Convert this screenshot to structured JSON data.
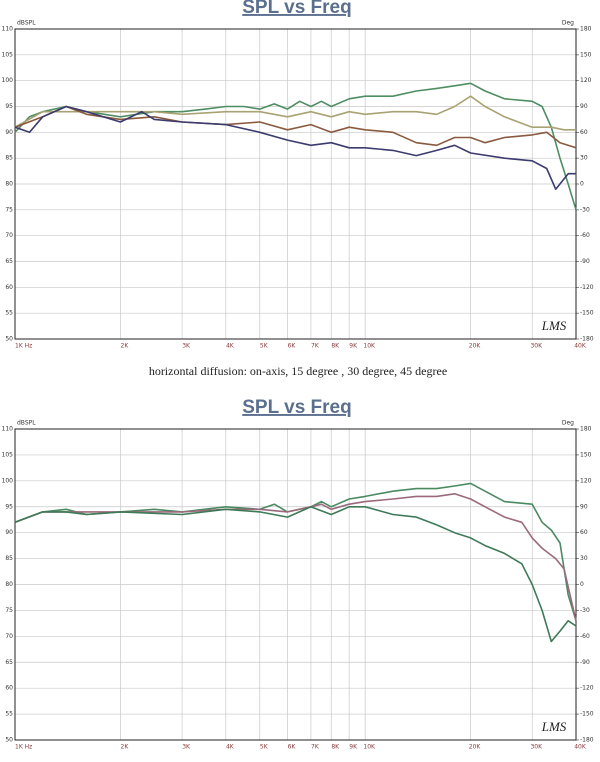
{
  "caption": "horizontal diffusion: on-axis, 15 degree , 30 degree, 45 degree",
  "chart_data": [
    {
      "type": "line",
      "title": "SPL vs Freq",
      "y_label": "dBSPL",
      "y2_label": "Deg",
      "annotation": "LMS",
      "log_x": true,
      "grid": true,
      "xlim": [
        1000,
        40000
      ],
      "xticks": [
        {
          "value": 1000,
          "label": "1K Hz"
        },
        {
          "value": 2000,
          "label": "2K"
        },
        {
          "value": 3000,
          "label": "3K"
        },
        {
          "value": 4000,
          "label": "4K"
        },
        {
          "value": 5000,
          "label": "5K"
        },
        {
          "value": 6000,
          "label": "6K"
        },
        {
          "value": 7000,
          "label": "7K"
        },
        {
          "value": 8000,
          "label": "8K"
        },
        {
          "value": 9000,
          "label": "9K"
        },
        {
          "value": 10000,
          "label": "10K"
        },
        {
          "value": 20000,
          "label": "20K"
        },
        {
          "value": 30000,
          "label": "30K"
        },
        {
          "value": 40000,
          "label": "40K"
        }
      ],
      "ylim": [
        50,
        110
      ],
      "yticks": [
        50,
        55,
        60,
        65,
        70,
        75,
        80,
        85,
        90,
        95,
        100,
        105,
        110
      ],
      "y2lim": [
        -180,
        180
      ],
      "y2ticks": [
        -180,
        -150,
        -120,
        -90,
        -60,
        -30,
        0,
        30,
        60,
        90,
        120,
        150,
        180
      ],
      "series": [
        {
          "color": "#4f8e62",
          "x": [
            1000,
            1100,
            1200,
            1400,
            1600,
            1800,
            2000,
            2500,
            3000,
            3500,
            4000,
            4500,
            5000,
            5500,
            6000,
            6500,
            7000,
            7500,
            8000,
            9000,
            10000,
            12000,
            14000,
            16000,
            18000,
            20000,
            22000,
            25000,
            30000,
            32000,
            34000,
            36000,
            38000,
            40000
          ],
          "values": [
            90,
            93,
            94,
            95,
            94,
            93.5,
            93,
            94,
            94,
            94.5,
            95,
            95,
            94.5,
            95.5,
            94.5,
            96,
            95,
            96,
            95,
            96.5,
            97,
            97,
            98,
            98.5,
            99,
            99.5,
            98,
            96.5,
            96,
            95,
            91,
            85,
            80,
            75
          ]
        },
        {
          "color": "#a9a272",
          "x": [
            1000,
            1200,
            1400,
            1600,
            2000,
            2500,
            3000,
            4000,
            5000,
            6000,
            7000,
            8000,
            9000,
            10000,
            12000,
            14000,
            16000,
            18000,
            20000,
            22000,
            25000,
            30000,
            34000,
            37000,
            40000
          ],
          "values": [
            91,
            94,
            94,
            94,
            94,
            94,
            93.5,
            94,
            94,
            93,
            94,
            93,
            94,
            93.5,
            94,
            94,
            93.5,
            95,
            97,
            95,
            93,
            91,
            91,
            90.5,
            90.5
          ]
        },
        {
          "color": "#8a5a3e",
          "x": [
            1000,
            1200,
            1400,
            1600,
            2000,
            2500,
            3000,
            4000,
            5000,
            6000,
            7000,
            8000,
            9000,
            10000,
            12000,
            14000,
            16000,
            18000,
            20000,
            22000,
            25000,
            30000,
            33000,
            36000,
            40000
          ],
          "values": [
            91,
            93,
            95,
            93.5,
            92.5,
            93,
            92,
            91.5,
            92,
            90.5,
            91.5,
            90,
            91,
            90.5,
            90,
            88,
            87.5,
            89,
            89,
            88,
            89,
            89.5,
            90,
            88,
            87
          ]
        },
        {
          "color": "#3b3b6e",
          "x": [
            1000,
            1100,
            1200,
            1400,
            1600,
            2000,
            2300,
            2500,
            3000,
            4000,
            5000,
            6000,
            7000,
            8000,
            9000,
            10000,
            12000,
            14000,
            16000,
            18000,
            20000,
            25000,
            30000,
            33000,
            35000,
            38000,
            40000
          ],
          "values": [
            91,
            90,
            93,
            95,
            94,
            92,
            94,
            92.5,
            92,
            91.5,
            90,
            88.5,
            87.5,
            88,
            87,
            87,
            86.5,
            85.5,
            86.5,
            87.5,
            86,
            85,
            84.5,
            83,
            79,
            82,
            82
          ]
        }
      ]
    },
    {
      "type": "line",
      "title": "SPL vs Freq",
      "y_label": "dBSPL",
      "y2_label": "Deg",
      "annotation": "LMS",
      "log_x": true,
      "grid": true,
      "xlim": [
        1000,
        40000
      ],
      "xticks": [
        {
          "value": 1000,
          "label": "1K Hz"
        },
        {
          "value": 2000,
          "label": "2K"
        },
        {
          "value": 3000,
          "label": "3K"
        },
        {
          "value": 4000,
          "label": "4K"
        },
        {
          "value": 5000,
          "label": "5K"
        },
        {
          "value": 6000,
          "label": "6K"
        },
        {
          "value": 7000,
          "label": "7K"
        },
        {
          "value": 8000,
          "label": "8K"
        },
        {
          "value": 9000,
          "label": "9K"
        },
        {
          "value": 10000,
          "label": "10K"
        },
        {
          "value": 20000,
          "label": "20K"
        },
        {
          "value": 30000,
          "label": "30K"
        },
        {
          "value": 40000,
          "label": "40K"
        }
      ],
      "ylim": [
        50,
        110
      ],
      "yticks": [
        50,
        55,
        60,
        65,
        70,
        75,
        80,
        85,
        90,
        95,
        100,
        105,
        110
      ],
      "y2lim": [
        -180,
        180
      ],
      "y2ticks": [
        -180,
        -150,
        -120,
        -90,
        -60,
        -30,
        0,
        30,
        60,
        90,
        120,
        150,
        180
      ],
      "series": [
        {
          "color": "#4a8a60",
          "x": [
            1000,
            1200,
            1400,
            1600,
            2000,
            2500,
            3000,
            4000,
            5000,
            5500,
            6000,
            7000,
            7500,
            8000,
            9000,
            10000,
            12000,
            14000,
            16000,
            18000,
            20000,
            22000,
            25000,
            30000,
            32000,
            34000,
            36000,
            38000,
            40000
          ],
          "values": [
            92,
            94,
            94.5,
            93.5,
            94,
            94.5,
            94,
            95,
            94.5,
            95.5,
            94,
            95,
            96,
            95,
            96.5,
            97,
            98,
            98.5,
            98.5,
            99,
            99.5,
            98,
            96,
            95.5,
            92,
            90.5,
            88,
            78,
            73
          ]
        },
        {
          "color": "#9a6a7c",
          "x": [
            1000,
            1200,
            1400,
            1600,
            2000,
            3000,
            4000,
            5000,
            6000,
            7000,
            7500,
            8000,
            9000,
            10000,
            12000,
            14000,
            16000,
            18000,
            20000,
            22000,
            25000,
            28000,
            30000,
            32000,
            35000,
            37000,
            40000
          ],
          "values": [
            92,
            94,
            94,
            94,
            94,
            94,
            94.5,
            94.5,
            94,
            95,
            95.5,
            94.5,
            95.5,
            96,
            96.5,
            97,
            97,
            97.5,
            96.5,
            95,
            93,
            92,
            89,
            87,
            85,
            83,
            73
          ]
        },
        {
          "color": "#3e7a58",
          "x": [
            1000,
            1200,
            1400,
            1600,
            2000,
            3000,
            4000,
            5000,
            6000,
            7000,
            8000,
            9000,
            10000,
            12000,
            14000,
            16000,
            18000,
            20000,
            22000,
            25000,
            28000,
            30000,
            32000,
            34000,
            36000,
            38000,
            40000
          ],
          "values": [
            92,
            94,
            94,
            93.5,
            94,
            93.5,
            94.5,
            94,
            93,
            95,
            93.5,
            95,
            95,
            93.5,
            93,
            91.5,
            90,
            89,
            87.5,
            86,
            84,
            80,
            75,
            69,
            71,
            73,
            72
          ]
        }
      ]
    }
  ]
}
